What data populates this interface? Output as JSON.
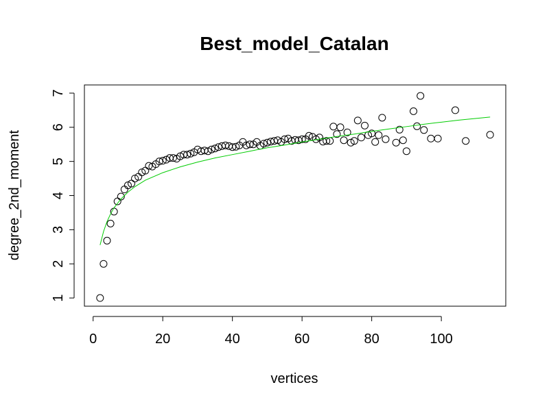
{
  "chart_data": {
    "type": "scatter",
    "title": "Best_model_Catalan",
    "xlabel": "vertices",
    "ylabel": "degree_2nd_moment",
    "xlim": [
      -2.5,
      118.5
    ],
    "ylim": [
      0.76,
      7.24
    ],
    "x_ticks": [
      0,
      20,
      40,
      60,
      80,
      100
    ],
    "y_ticks": [
      1,
      2,
      3,
      4,
      5,
      6,
      7
    ],
    "grid": false,
    "legend": "none",
    "colors": {
      "points": "#000000",
      "fit": "#00cc00"
    },
    "series": [
      {
        "style": "points",
        "points": [
          [
            2,
            1.0
          ],
          [
            3,
            2.0
          ],
          [
            4,
            2.68
          ],
          [
            5,
            3.18
          ],
          [
            6,
            3.53
          ],
          [
            7,
            3.83
          ],
          [
            8,
            3.97
          ],
          [
            9,
            4.18
          ],
          [
            10,
            4.3
          ],
          [
            11,
            4.35
          ],
          [
            12,
            4.5
          ],
          [
            13,
            4.55
          ],
          [
            14,
            4.68
          ],
          [
            15,
            4.73
          ],
          [
            16,
            4.87
          ],
          [
            17,
            4.85
          ],
          [
            18,
            4.92
          ],
          [
            19,
            5.0
          ],
          [
            20,
            5.02
          ],
          [
            21,
            5.05
          ],
          [
            22,
            5.1
          ],
          [
            23,
            5.1
          ],
          [
            24,
            5.08
          ],
          [
            25,
            5.15
          ],
          [
            26,
            5.2
          ],
          [
            27,
            5.2
          ],
          [
            28,
            5.23
          ],
          [
            29,
            5.27
          ],
          [
            30,
            5.35
          ],
          [
            31,
            5.3
          ],
          [
            32,
            5.32
          ],
          [
            33,
            5.3
          ],
          [
            34,
            5.35
          ],
          [
            35,
            5.38
          ],
          [
            36,
            5.42
          ],
          [
            37,
            5.45
          ],
          [
            38,
            5.47
          ],
          [
            39,
            5.45
          ],
          [
            40,
            5.42
          ],
          [
            41,
            5.43
          ],
          [
            42,
            5.47
          ],
          [
            43,
            5.57
          ],
          [
            44,
            5.47
          ],
          [
            45,
            5.5
          ],
          [
            46,
            5.5
          ],
          [
            47,
            5.57
          ],
          [
            48,
            5.46
          ],
          [
            49,
            5.52
          ],
          [
            50,
            5.55
          ],
          [
            51,
            5.58
          ],
          [
            52,
            5.6
          ],
          [
            53,
            5.62
          ],
          [
            54,
            5.57
          ],
          [
            55,
            5.65
          ],
          [
            56,
            5.67
          ],
          [
            57,
            5.6
          ],
          [
            58,
            5.63
          ],
          [
            59,
            5.62
          ],
          [
            60,
            5.65
          ],
          [
            61,
            5.65
          ],
          [
            62,
            5.75
          ],
          [
            63,
            5.72
          ],
          [
            64,
            5.65
          ],
          [
            65,
            5.7
          ],
          [
            66,
            5.58
          ],
          [
            67,
            5.6
          ],
          [
            68,
            5.6
          ],
          [
            69,
            6.02
          ],
          [
            70,
            5.8
          ],
          [
            71,
            6.0
          ],
          [
            72,
            5.62
          ],
          [
            73,
            5.85
          ],
          [
            74,
            5.55
          ],
          [
            75,
            5.6
          ],
          [
            76,
            6.2
          ],
          [
            77,
            5.7
          ],
          [
            78,
            6.05
          ],
          [
            79,
            5.77
          ],
          [
            80,
            5.82
          ],
          [
            81,
            5.57
          ],
          [
            82,
            5.77
          ],
          [
            83,
            6.28
          ],
          [
            84,
            5.65
          ],
          [
            87,
            5.55
          ],
          [
            88,
            5.93
          ],
          [
            89,
            5.62
          ],
          [
            90,
            5.3
          ],
          [
            92,
            6.47
          ],
          [
            93,
            6.03
          ],
          [
            94,
            6.92
          ],
          [
            95,
            5.92
          ],
          [
            97,
            5.67
          ],
          [
            99,
            5.67
          ],
          [
            104,
            6.5
          ],
          [
            107,
            5.6
          ],
          [
            114,
            5.78
          ]
        ]
      },
      {
        "style": "line",
        "points": [
          [
            2,
            2.55
          ],
          [
            3,
            2.95
          ],
          [
            4,
            3.24
          ],
          [
            5,
            3.46
          ],
          [
            6,
            3.64
          ],
          [
            8,
            3.9
          ],
          [
            10,
            4.1
          ],
          [
            12,
            4.26
          ],
          [
            15,
            4.45
          ],
          [
            20,
            4.67
          ],
          [
            25,
            4.84
          ],
          [
            30,
            4.98
          ],
          [
            35,
            5.1
          ],
          [
            40,
            5.2
          ],
          [
            45,
            5.3
          ],
          [
            50,
            5.4
          ],
          [
            55,
            5.48
          ],
          [
            60,
            5.57
          ],
          [
            65,
            5.65
          ],
          [
            70,
            5.73
          ],
          [
            75,
            5.8
          ],
          [
            80,
            5.88
          ],
          [
            85,
            5.95
          ],
          [
            90,
            6.02
          ],
          [
            95,
            6.09
          ],
          [
            100,
            6.15
          ],
          [
            105,
            6.21
          ],
          [
            110,
            6.26
          ],
          [
            114,
            6.3
          ]
        ]
      }
    ]
  }
}
